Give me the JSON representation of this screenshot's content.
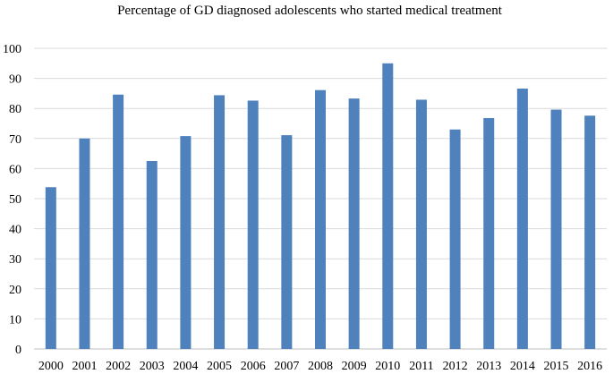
{
  "chart_data": {
    "type": "bar",
    "title": "Percentage of  GD diagnosed adolescents who started medical treatment",
    "xlabel": "",
    "ylabel": "",
    "categories": [
      "2000",
      "2001",
      "2002",
      "2003",
      "2004",
      "2005",
      "2006",
      "2007",
      "2008",
      "2009",
      "2010",
      "2011",
      "2012",
      "2013",
      "2014",
      "2015",
      "2016"
    ],
    "values": [
      53.8,
      70.0,
      84.6,
      62.5,
      70.8,
      84.4,
      82.6,
      71.1,
      86.1,
      83.3,
      95.0,
      82.9,
      73.0,
      76.8,
      86.6,
      79.6,
      77.6
    ],
    "ylim": [
      0,
      100
    ],
    "yticks": [
      "0",
      "10",
      "20",
      "30",
      "40",
      "50",
      "60",
      "70",
      "80",
      "90",
      "100"
    ],
    "grid": true,
    "legend": "none",
    "bar_color": "#4f81bd"
  }
}
